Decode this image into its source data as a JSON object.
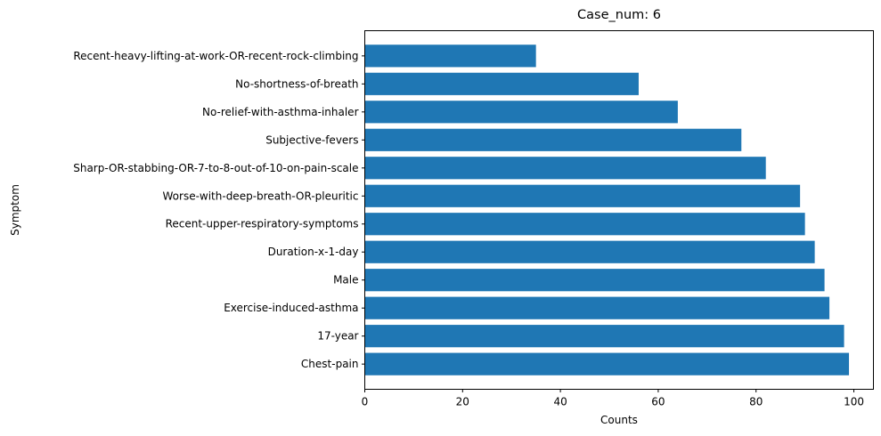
{
  "chart_data": {
    "type": "bar",
    "orientation": "horizontal",
    "title": "Case_num: 6",
    "xlabel": "Counts",
    "ylabel": "Symptom",
    "xlim": [
      0,
      104
    ],
    "xticks": [
      0,
      20,
      40,
      60,
      80,
      100
    ],
    "grid": false,
    "bar_color": "#1f77b4",
    "categories": [
      "Chest-pain",
      "17-year",
      "Exercise-induced-asthma",
      "Male",
      "Duration-x-1-day",
      "Recent-upper-respiratory-symptoms",
      "Worse-with-deep-breath-OR-pleuritic",
      "Sharp-OR-stabbing-OR-7-to-8-out-of-10-on-pain-scale",
      "Subjective-fevers",
      "No-relief-with-asthma-inhaler",
      "No-shortness-of-breath",
      "Recent-heavy-lifting-at-work-OR-recent-rock-climbing"
    ],
    "values": [
      99,
      98,
      95,
      94,
      92,
      90,
      89,
      82,
      77,
      64,
      56,
      35
    ]
  }
}
